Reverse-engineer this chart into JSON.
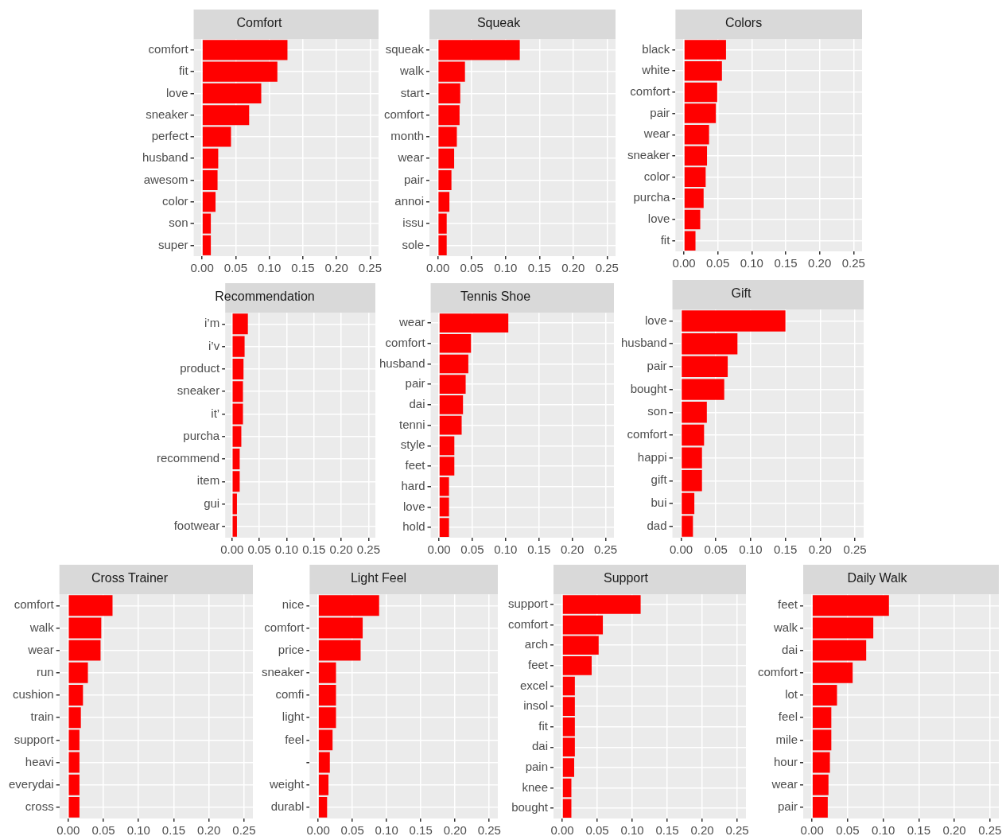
{
  "chart_data": [
    {
      "type": "bar",
      "orientation": "horizontal",
      "title": "Comfort",
      "categories": [
        "comfort",
        "fit",
        "love",
        "sneaker",
        "perfect",
        "husband",
        "awesom",
        "color",
        "son",
        "super"
      ],
      "values": [
        0.127,
        0.112,
        0.088,
        0.07,
        0.043,
        0.024,
        0.023,
        0.02,
        0.013,
        0.013
      ],
      "color": "#ff0000",
      "xlim": [
        -0.0125,
        0.2625
      ],
      "xticks": [
        {
          "value": 0,
          "label": "0.00"
        },
        {
          "value": 0.05,
          "label": "0.05"
        },
        {
          "value": 0.1,
          "label": "0.10"
        },
        {
          "value": 0.15,
          "label": "0.15"
        },
        {
          "value": 0.2,
          "label": "0.20"
        },
        {
          "value": 0.25,
          "label": "0.25"
        }
      ],
      "grid": true
    },
    {
      "type": "bar",
      "orientation": "horizontal",
      "title": "Squeak",
      "categories": [
        "squeak",
        "walk",
        "start",
        "comfort",
        "month",
        "wear",
        "pair",
        "annoi",
        "issu",
        "sole"
      ],
      "values": [
        0.121,
        0.04,
        0.033,
        0.032,
        0.028,
        0.024,
        0.02,
        0.017,
        0.013,
        0.013
      ],
      "color": "#ff0000",
      "xlim": [
        -0.0125,
        0.2625
      ],
      "xticks": [
        {
          "value": 0,
          "label": "0.00"
        },
        {
          "value": 0.05,
          "label": "0.05"
        },
        {
          "value": 0.1,
          "label": "0.10"
        },
        {
          "value": 0.15,
          "label": "0.15"
        },
        {
          "value": 0.2,
          "label": "0.20"
        },
        {
          "value": 0.25,
          "label": "0.25"
        }
      ],
      "grid": true
    },
    {
      "type": "bar",
      "orientation": "horizontal",
      "title": "Colors",
      "categories": [
        "black",
        "white",
        "comfort",
        "pair",
        "wear",
        "sneaker",
        "color",
        "purcha",
        "love",
        "fit"
      ],
      "values": [
        0.062,
        0.056,
        0.049,
        0.047,
        0.037,
        0.034,
        0.032,
        0.029,
        0.024,
        0.017
      ],
      "color": "#ff0000",
      "xlim": [
        -0.0125,
        0.2625
      ],
      "xticks": [
        {
          "value": 0,
          "label": "0.00"
        },
        {
          "value": 0.05,
          "label": "0.05"
        },
        {
          "value": 0.1,
          "label": "0.10"
        },
        {
          "value": 0.15,
          "label": "0.15"
        },
        {
          "value": 0.2,
          "label": "0.20"
        },
        {
          "value": 0.25,
          "label": "0.25"
        }
      ],
      "grid": true
    },
    {
      "type": "bar",
      "orientation": "horizontal",
      "title": "Recommendation",
      "categories": [
        "i’m",
        "i’v",
        "product",
        "sneaker",
        "it’",
        "purcha",
        "recommend",
        "item",
        "gui",
        "footwear"
      ],
      "values": [
        0.029,
        0.023,
        0.021,
        0.02,
        0.02,
        0.017,
        0.014,
        0.014,
        0.009,
        0.009
      ],
      "color": "#ff0000",
      "xlim": [
        -0.0125,
        0.2625
      ],
      "xticks": [
        {
          "value": 0,
          "label": "0.00"
        },
        {
          "value": 0.05,
          "label": "0.05"
        },
        {
          "value": 0.1,
          "label": "0.10"
        },
        {
          "value": 0.15,
          "label": "0.15"
        },
        {
          "value": 0.2,
          "label": "0.20"
        },
        {
          "value": 0.25,
          "label": "0.25"
        }
      ],
      "grid": true
    },
    {
      "type": "bar",
      "orientation": "horizontal",
      "title": "Tennis Shoe",
      "categories": [
        "wear",
        "comfort",
        "husband",
        "pair",
        "dai",
        "tenni",
        "style",
        "feet",
        "hard",
        "love",
        "hold"
      ],
      "values": [
        0.104,
        0.048,
        0.044,
        0.04,
        0.036,
        0.034,
        0.023,
        0.023,
        0.015,
        0.015,
        0.015
      ],
      "color": "#ff0000",
      "xlim": [
        -0.0125,
        0.2625
      ],
      "xticks": [
        {
          "value": 0,
          "label": "0.00"
        },
        {
          "value": 0.05,
          "label": "0.05"
        },
        {
          "value": 0.1,
          "label": "0.10"
        },
        {
          "value": 0.15,
          "label": "0.15"
        },
        {
          "value": 0.2,
          "label": "0.20"
        },
        {
          "value": 0.25,
          "label": "0.25"
        }
      ],
      "grid": true
    },
    {
      "type": "bar",
      "orientation": "horizontal",
      "title": "Gift",
      "categories": [
        "love",
        "husband",
        "pair",
        "bought",
        "son",
        "comfort",
        "happi",
        "gift",
        "bui",
        "dad"
      ],
      "values": [
        0.15,
        0.081,
        0.067,
        0.062,
        0.037,
        0.033,
        0.03,
        0.03,
        0.019,
        0.017
      ],
      "color": "#ff0000",
      "xlim": [
        -0.0125,
        0.2625
      ],
      "xticks": [
        {
          "value": 0,
          "label": "0.00"
        },
        {
          "value": 0.05,
          "label": "0.05"
        },
        {
          "value": 0.1,
          "label": "0.10"
        },
        {
          "value": 0.15,
          "label": "0.15"
        },
        {
          "value": 0.2,
          "label": "0.20"
        },
        {
          "value": 0.25,
          "label": "0.25"
        }
      ],
      "grid": true
    },
    {
      "type": "bar",
      "orientation": "horizontal",
      "title": "Cross Trainer",
      "categories": [
        "comfort",
        "walk",
        "wear",
        "run",
        "cushion",
        "train",
        "support",
        "heavi",
        "everydai",
        "cross"
      ],
      "values": [
        0.063,
        0.047,
        0.046,
        0.028,
        0.021,
        0.018,
        0.016,
        0.016,
        0.016,
        0.016
      ],
      "color": "#ff0000",
      "xlim": [
        -0.0125,
        0.2625
      ],
      "xticks": [
        {
          "value": 0,
          "label": "0.00"
        },
        {
          "value": 0.05,
          "label": "0.05"
        },
        {
          "value": 0.1,
          "label": "0.10"
        },
        {
          "value": 0.15,
          "label": "0.15"
        },
        {
          "value": 0.2,
          "label": "0.20"
        },
        {
          "value": 0.25,
          "label": "0.25"
        }
      ],
      "grid": true
    },
    {
      "type": "bar",
      "orientation": "horizontal",
      "title": "Light Feel",
      "categories": [
        "nice",
        "comfort",
        "price",
        "sneaker",
        "comfi",
        "light",
        "feel",
        null,
        "weight",
        "durabl"
      ],
      "values": [
        0.089,
        0.065,
        0.062,
        0.026,
        0.026,
        0.026,
        0.021,
        0.017,
        0.015,
        0.013
      ],
      "color": "#ff0000",
      "xlim": [
        -0.0125,
        0.2625
      ],
      "xticks": [
        {
          "value": 0,
          "label": "0.00"
        },
        {
          "value": 0.05,
          "label": "0.05"
        },
        {
          "value": 0.1,
          "label": "0.10"
        },
        {
          "value": 0.15,
          "label": "0.15"
        },
        {
          "value": 0.2,
          "label": "0.20"
        },
        {
          "value": 0.25,
          "label": "0.25"
        }
      ],
      "grid": true
    },
    {
      "type": "bar",
      "orientation": "horizontal",
      "title": "Support",
      "categories": [
        "support",
        "comfort",
        "arch",
        "feet",
        "excel",
        "insol",
        "fit",
        "dai",
        "pain",
        "knee",
        "bought"
      ],
      "values": [
        0.112,
        0.058,
        0.052,
        0.042,
        0.018,
        0.018,
        0.018,
        0.018,
        0.017,
        0.013,
        0.013
      ],
      "color": "#ff0000",
      "xlim": [
        -0.0125,
        0.2625
      ],
      "xticks": [
        {
          "value": 0,
          "label": "0.00"
        },
        {
          "value": 0.05,
          "label": "0.05"
        },
        {
          "value": 0.1,
          "label": "0.10"
        },
        {
          "value": 0.15,
          "label": "0.15"
        },
        {
          "value": 0.2,
          "label": "0.20"
        },
        {
          "value": 0.25,
          "label": "0.25"
        }
      ],
      "grid": true
    },
    {
      "type": "bar",
      "orientation": "horizontal",
      "title": "Daily Walk",
      "categories": [
        "feet",
        "walk",
        "dai",
        "comfort",
        "lot",
        "feel",
        "mile",
        "hour",
        "wear",
        "pair"
      ],
      "values": [
        0.108,
        0.086,
        0.076,
        0.057,
        0.035,
        0.027,
        0.027,
        0.025,
        0.023,
        0.022
      ],
      "color": "#ff0000",
      "xlim": [
        -0.0125,
        0.2625
      ],
      "xticks": [
        {
          "value": 0,
          "label": "0.00"
        },
        {
          "value": 0.05,
          "label": "0.05"
        },
        {
          "value": 0.1,
          "label": "0.10"
        },
        {
          "value": 0.15,
          "label": "0.15"
        },
        {
          "value": 0.2,
          "label": "0.20"
        },
        {
          "value": 0.25,
          "label": "0.25"
        }
      ],
      "grid": true
    }
  ]
}
